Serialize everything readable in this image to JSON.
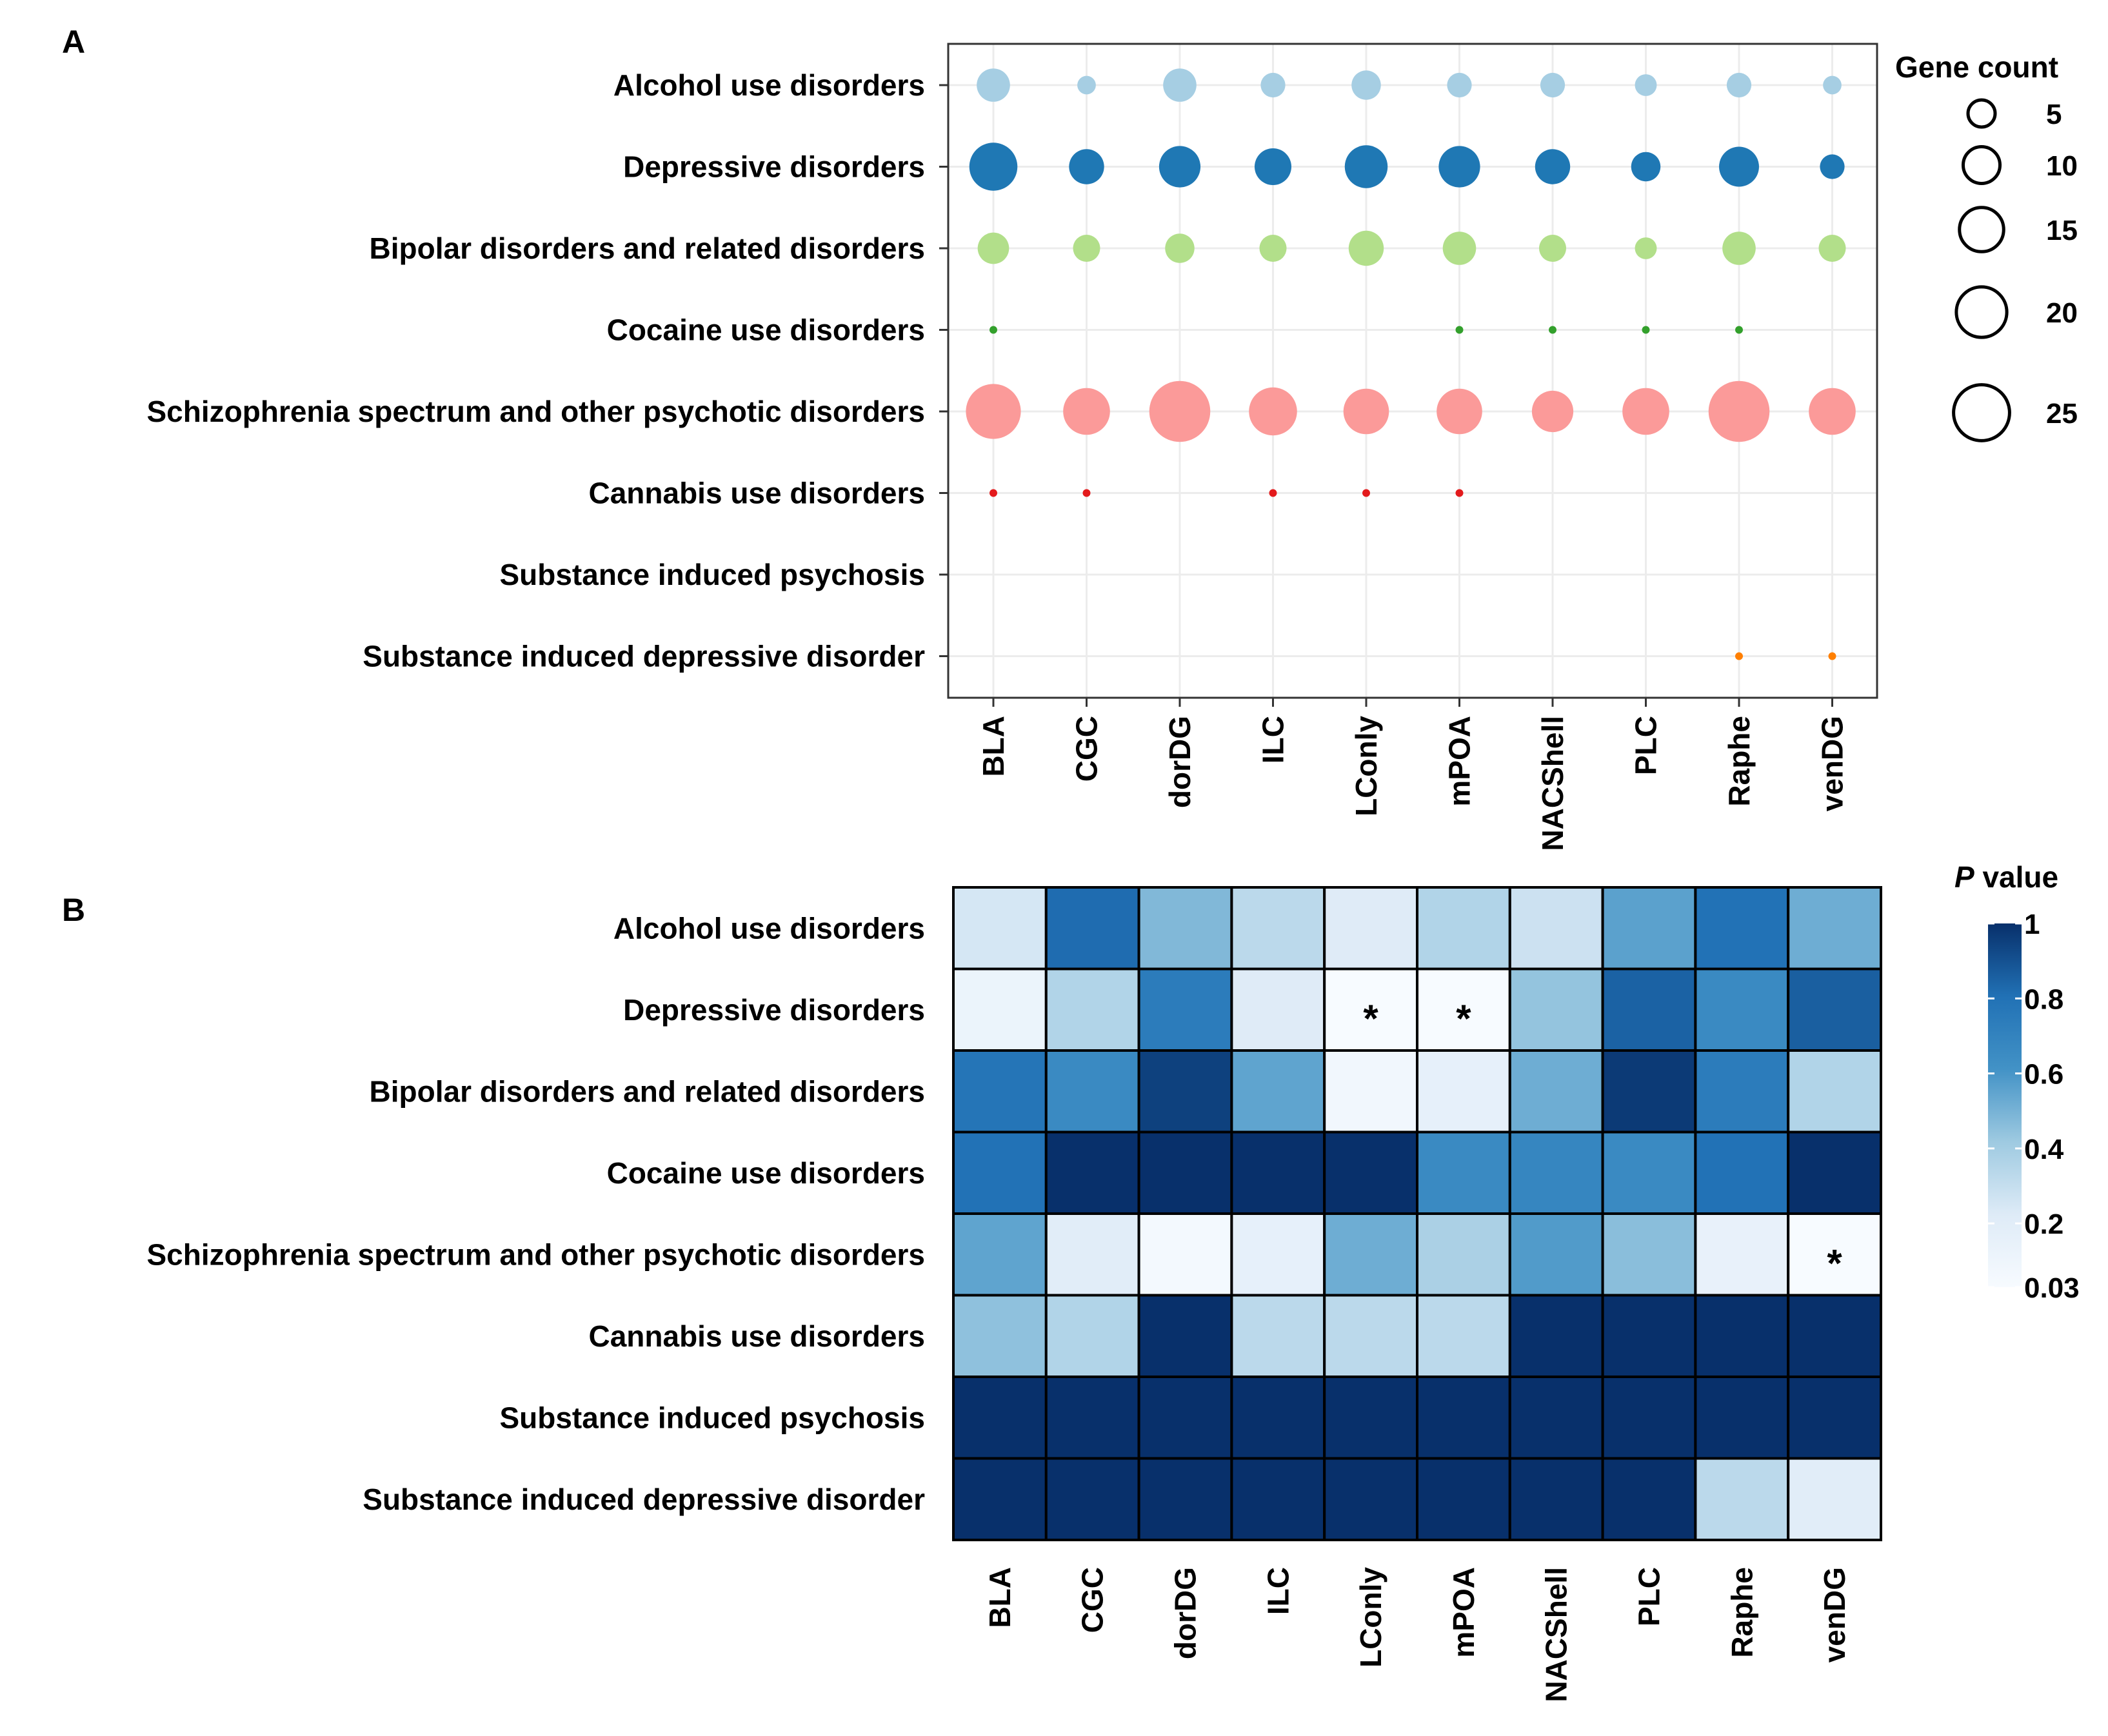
{
  "chart_data": [
    {
      "type": "scatter",
      "panel": "A",
      "title": "",
      "xlabel": "",
      "ylabel": "",
      "grid": true,
      "categories": [
        "BLA",
        "CGC",
        "dorDG",
        "ILC",
        "LConly",
        "mPOA",
        "NACShell",
        "PLC",
        "Raphe",
        "venDG"
      ],
      "rows": [
        "Alcohol use disorders",
        "Depressive disorders",
        "Bipolar disorders and related disorders",
        "Cocaine use disorders",
        "Schizophrenia spectrum and other psychotic disorders",
        "Cannabis use disorders",
        "Substance induced psychosis",
        "Substance induced depressive disorder"
      ],
      "row_colors": [
        "#a6cee3",
        "#1f78b4",
        "#b2df8a",
        "#33a02c",
        "#fb9a99",
        "#e31a1c",
        "#fdbf6f",
        "#ff7f00"
      ],
      "size_values": [
        [
          8,
          2,
          8,
          4,
          6,
          4,
          4,
          3,
          4,
          2
        ],
        [
          18,
          9,
          13,
          10,
          14,
          13,
          9,
          6,
          12,
          4
        ],
        [
          7,
          5,
          6,
          5,
          9,
          8,
          5,
          3,
          8,
          5
        ],
        [
          1,
          0,
          0,
          0,
          0,
          1,
          1,
          1,
          1,
          0
        ],
        [
          24,
          17,
          30,
          18,
          16,
          16,
          13,
          17,
          30,
          17
        ],
        [
          1,
          1,
          0,
          1,
          1,
          1,
          0,
          0,
          0,
          0
        ],
        [
          0,
          0,
          0,
          0,
          0,
          0,
          0,
          0,
          0,
          0
        ],
        [
          0,
          0,
          0,
          0,
          0,
          0,
          0,
          0,
          1,
          1
        ]
      ],
      "legend": {
        "title": "Gene count",
        "entries": [
          {
            "label": "5",
            "value": 5
          },
          {
            "label": "10",
            "value": 10
          },
          {
            "label": "15",
            "value": 15
          },
          {
            "label": "20",
            "value": 20
          },
          {
            "label": "25",
            "value": 25
          }
        ]
      }
    },
    {
      "type": "heatmap",
      "panel": "B",
      "title": "",
      "xlabel": "",
      "ylabel": "",
      "categories": [
        "BLA",
        "CGC",
        "dorDG",
        "ILC",
        "LConly",
        "mPOA",
        "NACShell",
        "PLC",
        "Raphe",
        "venDG"
      ],
      "rows": [
        "Alcohol use disorders",
        "Depressive disorders",
        "Bipolar disorders and related disorders",
        "Cocaine use disorders",
        "Schizophrenia spectrum and other psychotic disorders",
        "Cannabis use disorders",
        "Substance induced psychosis",
        "Substance induced depressive disorder"
      ],
      "values": [
        [
          0.25,
          0.82,
          0.48,
          0.33,
          0.22,
          0.36,
          0.28,
          0.56,
          0.8,
          0.52
        ],
        [
          0.12,
          0.36,
          0.74,
          0.22,
          0.03,
          0.03,
          0.44,
          0.85,
          0.66,
          0.86
        ],
        [
          0.78,
          0.66,
          0.95,
          0.55,
          0.08,
          0.16,
          0.52,
          0.97,
          0.74,
          0.36
        ],
        [
          0.8,
          1.0,
          1.0,
          1.0,
          1.0,
          0.66,
          0.68,
          0.66,
          0.8,
          1.0
        ],
        [
          0.55,
          0.2,
          0.06,
          0.16,
          0.52,
          0.38,
          0.58,
          0.46,
          0.15,
          0.03
        ],
        [
          0.45,
          0.36,
          1.0,
          0.33,
          0.33,
          0.33,
          1.0,
          1.0,
          1.0,
          1.0
        ],
        [
          1.0,
          1.0,
          1.0,
          1.0,
          1.0,
          1.0,
          1.0,
          1.0,
          1.0,
          1.0
        ],
        [
          1.0,
          1.0,
          1.0,
          1.0,
          1.0,
          1.0,
          1.0,
          1.0,
          0.33,
          0.2
        ]
      ],
      "significance": [
        {
          "row": 1,
          "col": 4,
          "mark": "*"
        },
        {
          "row": 1,
          "col": 5,
          "mark": "*"
        },
        {
          "row": 4,
          "col": 9,
          "mark": "*"
        }
      ],
      "colorbar": {
        "title_italic": "P",
        "title_rest": " value",
        "range": [
          0.03,
          1
        ],
        "ticks": [
          {
            "label": "1",
            "value": 1
          },
          {
            "label": "0.8",
            "value": 0.8
          },
          {
            "label": "0.6",
            "value": 0.6
          },
          {
            "label": "0.4",
            "value": 0.4
          },
          {
            "label": "0.2",
            "value": 0.2
          },
          {
            "label": "0.03",
            "value": 0.03
          }
        ]
      }
    }
  ],
  "panels": {
    "a_label": "A",
    "b_label": "B"
  }
}
